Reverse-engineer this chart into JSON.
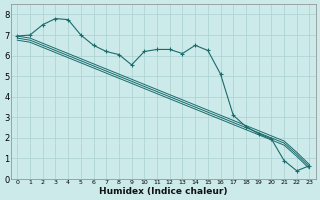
{
  "xlabel": "Humidex (Indice chaleur)",
  "bg_color": "#cdeaea",
  "grid_color": "#aacfcf",
  "line_color": "#1a6b6b",
  "xlim": [
    -0.5,
    23.5
  ],
  "ylim": [
    0,
    8.5
  ],
  "xticks": [
    0,
    1,
    2,
    3,
    4,
    5,
    6,
    7,
    8,
    9,
    10,
    11,
    12,
    13,
    14,
    15,
    16,
    17,
    18,
    19,
    20,
    21,
    22,
    23
  ],
  "yticks": [
    0,
    1,
    2,
    3,
    4,
    5,
    6,
    7,
    8
  ],
  "band_line1": [
    6.95,
    6.85,
    6.6,
    6.35,
    6.1,
    5.85,
    5.6,
    5.35,
    5.1,
    4.85,
    4.6,
    4.35,
    4.1,
    3.85,
    3.6,
    3.35,
    3.1,
    2.85,
    2.6,
    2.35,
    2.1,
    1.85,
    1.3,
    0.7
  ],
  "band_line2": [
    6.85,
    6.75,
    6.5,
    6.25,
    6.0,
    5.75,
    5.5,
    5.25,
    5.0,
    4.75,
    4.5,
    4.25,
    4.0,
    3.75,
    3.5,
    3.25,
    3.0,
    2.75,
    2.5,
    2.25,
    2.0,
    1.75,
    1.2,
    0.6
  ],
  "band_line3": [
    6.75,
    6.65,
    6.4,
    6.15,
    5.9,
    5.65,
    5.4,
    5.15,
    4.9,
    4.65,
    4.4,
    4.15,
    3.9,
    3.65,
    3.4,
    3.15,
    2.9,
    2.65,
    2.4,
    2.15,
    1.9,
    1.65,
    1.1,
    0.5
  ],
  "marker_x": [
    0,
    1,
    2,
    3,
    4,
    5,
    6,
    7,
    8,
    9,
    10,
    11,
    12,
    13,
    14,
    15,
    16,
    17,
    18,
    19,
    20,
    21,
    22,
    23
  ],
  "marker_y": [
    6.95,
    7.0,
    7.5,
    7.8,
    7.75,
    7.0,
    6.5,
    6.2,
    6.05,
    5.55,
    6.2,
    6.3,
    6.3,
    6.1,
    6.5,
    6.25,
    5.1,
    3.1,
    2.55,
    2.2,
    1.95,
    0.9,
    0.4,
    0.65
  ]
}
